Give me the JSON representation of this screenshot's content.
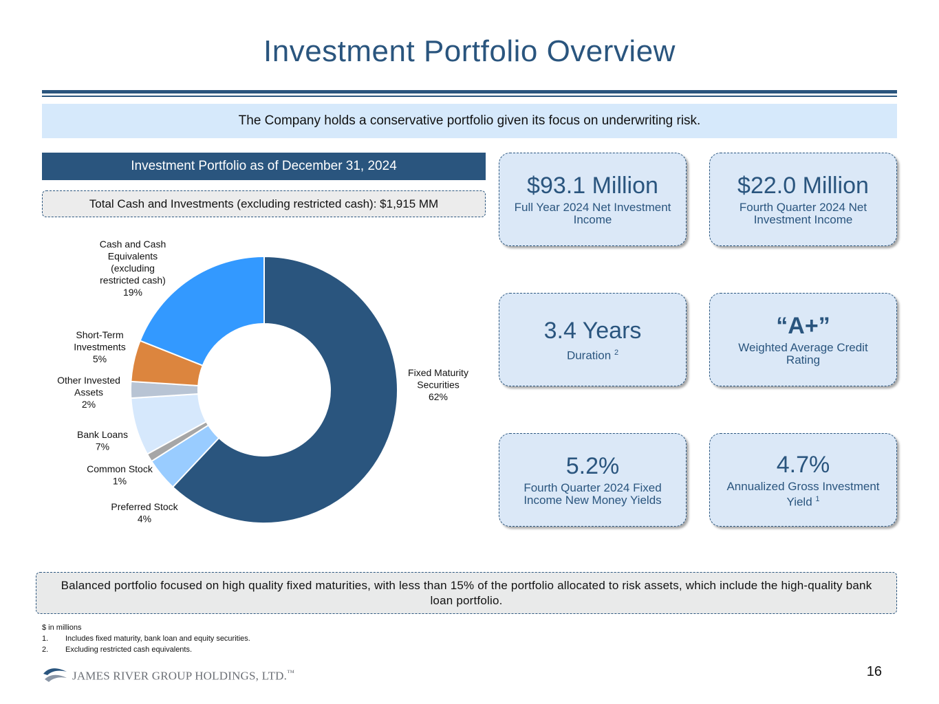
{
  "title": "Investment Portfolio Overview",
  "banner": "The Company holds a conservative portfolio given its focus on underwriting risk.",
  "portfolio_header": "Investment Portfolio as of December 31, 2024",
  "total_box": "Total Cash and Investments (excluding restricted cash): $1,915 MM",
  "colors": {
    "brand": "#2a557e",
    "card_bg": "#dbe8f7",
    "banner_bg": "#d6e9fb"
  },
  "chart_data": {
    "type": "pie",
    "variant": "donut",
    "slices": [
      {
        "label": "Fixed Maturity Securities",
        "pct_label": "62%",
        "value": 62,
        "color": "#2a557e"
      },
      {
        "label": "Preferred Stock",
        "pct_label": "4%",
        "value": 4,
        "color": "#99ccff"
      },
      {
        "label": "Common Stock",
        "pct_label": "1%",
        "value": 1,
        "color": "#a6a6a6"
      },
      {
        "label": "Bank Loans",
        "pct_label": "7%",
        "value": 7,
        "color": "#d6e8fc"
      },
      {
        "label": "Other Invested Assets",
        "pct_label": "2%",
        "value": 2,
        "color": "#b8c4d4"
      },
      {
        "label": "Short-Term Investments",
        "pct_label": "5%",
        "value": 5,
        "color": "#dc853e"
      },
      {
        "label": "Cash and Cash Equivalents (excluding restricted cash)",
        "pct_label": "19%",
        "value": 19,
        "color": "#3399ff"
      }
    ],
    "label_lines": [
      [
        "Fixed Maturity",
        "Securities",
        "62%"
      ],
      [
        "Preferred Stock",
        "4%"
      ],
      [
        "Common Stock",
        "1%"
      ],
      [
        "Bank Loans",
        "7%"
      ],
      [
        "Other Invested",
        "Assets",
        "2%"
      ],
      [
        "Short-Term",
        "Investments",
        "5%"
      ],
      [
        "Cash and Cash",
        "Equivalents",
        "(excluding",
        "restricted cash)",
        "19%"
      ]
    ]
  },
  "cards": [
    {
      "value": "$93.1 Million",
      "label": "Full Year 2024 Net Investment Income",
      "sup": ""
    },
    {
      "value": "$22.0 Million",
      "label": "Fourth Quarter 2024 Net Investment Income",
      "sup": ""
    },
    {
      "value": "3.4 Years",
      "label": "Duration",
      "sup": "2"
    },
    {
      "value": "“A+”",
      "label": "Weighted Average Credit Rating",
      "sup": ""
    },
    {
      "value": "5.2%",
      "label": "Fourth Quarter 2024 Fixed Income New Money Yields",
      "sup": ""
    },
    {
      "value": "4.7%",
      "label": "Annualized Gross Investment Yield",
      "sup": "1"
    }
  ],
  "bottom_box": "Balanced portfolio focused on high quality fixed maturities, with less than 15% of the portfolio allocated to risk assets, which include the high-quality bank loan portfolio.",
  "footnotes": {
    "units": "$ in millions",
    "notes": [
      {
        "num": "1.",
        "text": "Includes fixed maturity, bank loan and equity securities."
      },
      {
        "num": "2.",
        "text": "Excluding restricted cash equivalents."
      }
    ]
  },
  "logo_text": "JAMES RIVER GROUP HOLDINGS, LTD.",
  "logo_mark": "™",
  "page_number": "16"
}
